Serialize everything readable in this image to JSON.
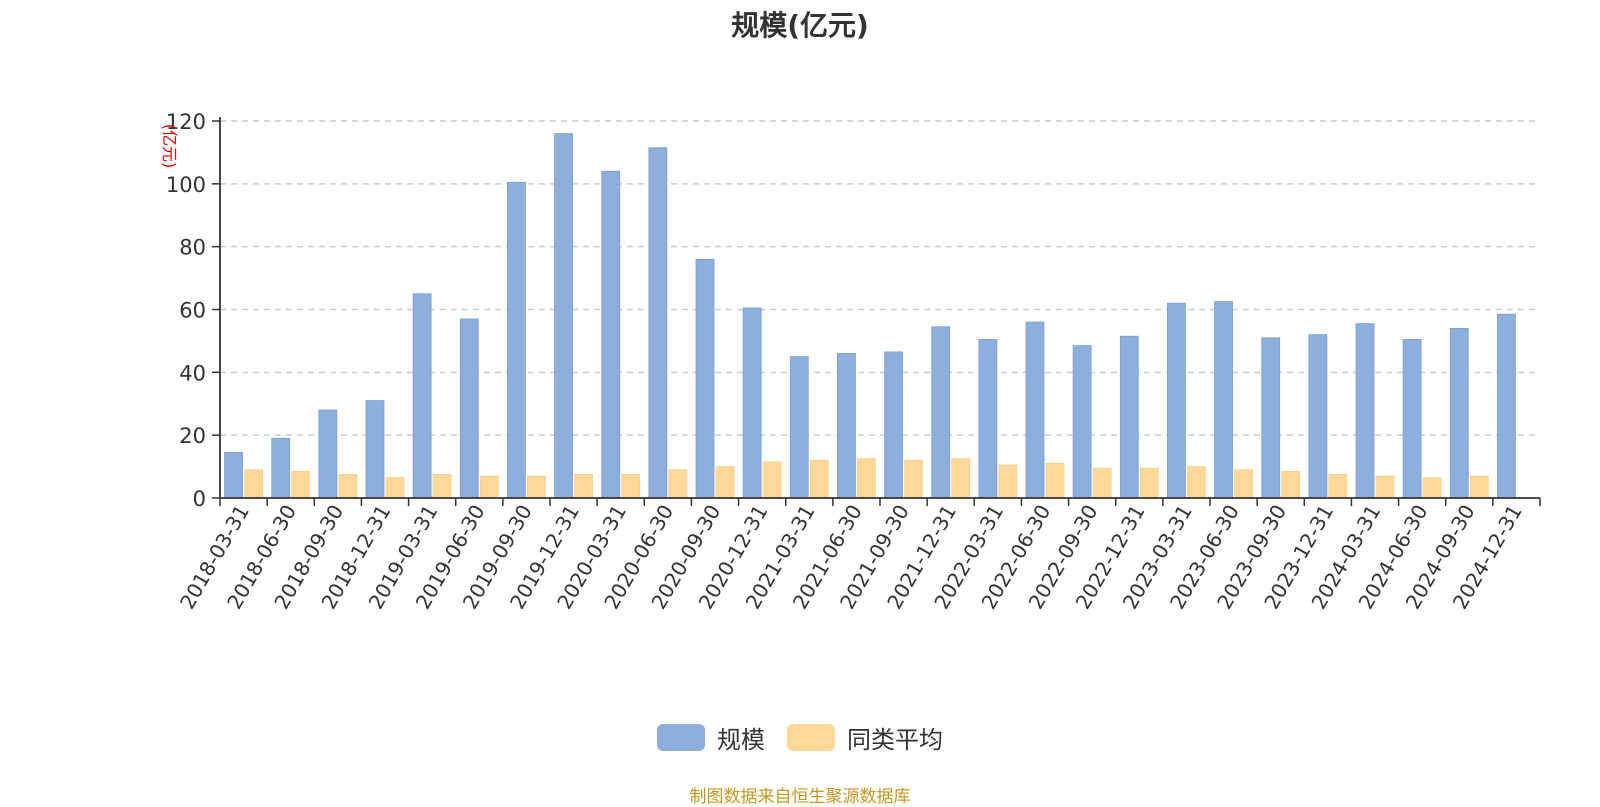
{
  "chart_data": {
    "type": "bar",
    "title": "规模(亿元)",
    "unit_label": "(亿元)",
    "categories": [
      "2018-03-31",
      "2018-06-30",
      "2018-09-30",
      "2018-12-31",
      "2019-03-31",
      "2019-06-30",
      "2019-09-30",
      "2019-12-31",
      "2020-03-31",
      "2020-06-30",
      "2020-09-30",
      "2020-12-31",
      "2021-03-31",
      "2021-06-30",
      "2021-09-30",
      "2021-12-31",
      "2022-03-31",
      "2022-06-30",
      "2022-09-30",
      "2022-12-31",
      "2023-03-31",
      "2023-06-30",
      "2023-09-30",
      "2023-12-31",
      "2024-03-31",
      "2024-06-30",
      "2024-09-30",
      "2024-12-31"
    ],
    "series": [
      {
        "name": "规模",
        "color": "#8eafdc",
        "values": [
          14.5,
          19.0,
          28.0,
          31.0,
          65.0,
          57.0,
          100.5,
          116.0,
          104.0,
          111.5,
          76.0,
          60.5,
          45.0,
          46.0,
          46.5,
          54.5,
          50.5,
          56.0,
          48.5,
          51.5,
          62.0,
          62.5,
          51.0,
          52.0,
          55.5,
          50.5,
          54.0,
          58.5
        ]
      },
      {
        "name": "同类平均",
        "color": "#fdd999",
        "values": [
          9.0,
          8.5,
          7.5,
          6.5,
          7.5,
          7.0,
          7.0,
          7.5,
          7.5,
          9.0,
          10.0,
          11.5,
          12.0,
          12.5,
          12.0,
          12.5,
          10.5,
          11.0,
          9.5,
          9.5,
          10.0,
          9.0,
          8.5,
          7.5,
          7.0,
          6.5,
          7.0,
          null
        ]
      }
    ],
    "y_ticks": [
      0,
      20,
      40,
      60,
      80,
      100,
      120
    ],
    "ylim": [
      0,
      120
    ],
    "grid": true,
    "grid_style": "dashed-horizontal",
    "legend_position": "bottom-center"
  },
  "legend": [
    {
      "label": "规模",
      "color": "#8eafdc"
    },
    {
      "label": "同类平均",
      "color": "#fdd999"
    }
  ],
  "source_note": "制图数据来自恒生聚源数据库"
}
